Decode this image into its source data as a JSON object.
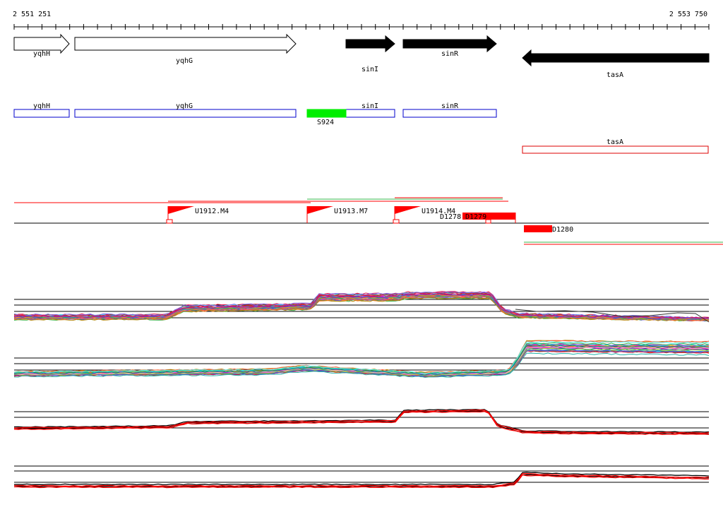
{
  "ruler": {
    "start_label": "2 551 251",
    "end_label": "2 553 750"
  },
  "genes": [
    {
      "name": "yqhH",
      "strand": "+",
      "style": "open"
    },
    {
      "name": "yqhG",
      "strand": "+",
      "style": "open"
    },
    {
      "name": "sinI",
      "strand": "+",
      "style": "filled"
    },
    {
      "name": "sinR",
      "strand": "+",
      "style": "filled"
    },
    {
      "name": "tasA",
      "strand": "-",
      "style": "filled"
    }
  ],
  "transcripts": {
    "plus": [
      {
        "name": "yqhH"
      },
      {
        "name": "yqhG"
      },
      {
        "name": "sinI"
      },
      {
        "name": "sinR"
      }
    ],
    "minus": [
      {
        "name": "tasA"
      }
    ],
    "segments": [
      {
        "name": "S924"
      }
    ]
  },
  "features": {
    "upshifts": [
      {
        "name": "U1912.M4"
      },
      {
        "name": "U1913.M7"
      },
      {
        "name": "U1914.M4"
      }
    ],
    "downshifts": [
      {
        "name": "D1278"
      },
      {
        "name": "D1279"
      },
      {
        "name": "D1280"
      }
    ]
  },
  "colors": {
    "gene_fill": "#000000",
    "plus_box": "#0000cc",
    "minus_box": "#dd0000",
    "segment": "#00ee00",
    "feature_red": "#ff0000",
    "expression_palette": [
      "#e6194b",
      "#3cb44b",
      "#4363d8",
      "#f58231",
      "#911eb4",
      "#46f0f0",
      "#f032e6",
      "#9acd32",
      "#fabebe",
      "#008080",
      "#8b4513",
      "#ff00ff",
      "#00bfff",
      "#ffd700",
      "#228b22",
      "#ff1493",
      "#7b68ee",
      "#ff4500",
      "#2e8b57",
      "#00ced1",
      "#dc143c",
      "#6a5acd",
      "#20b2aa",
      "#b8860b",
      "#ff6347"
    ]
  }
}
